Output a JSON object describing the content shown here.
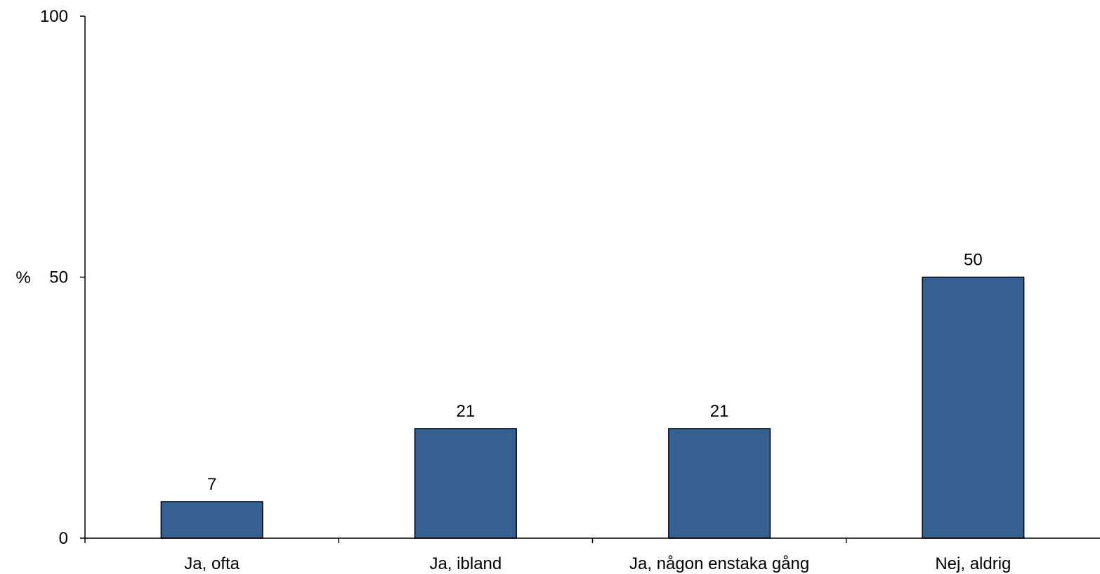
{
  "chart_data": {
    "type": "bar",
    "title": "",
    "xlabel": "",
    "ylabel": "%",
    "ylim": [
      0,
      100
    ],
    "yticks": [
      0,
      50,
      100
    ],
    "categories": [
      "Ja, ofta",
      "Ja, ibland",
      "Ja, någon enstaka gång",
      "Nej, aldrig"
    ],
    "values": [
      7,
      21,
      21,
      50
    ],
    "data_labels": [
      "7",
      "21",
      "21",
      "50"
    ],
    "grid": false,
    "legend": "none",
    "bar_color": "#376092",
    "bar_edge_color": "#000000"
  }
}
